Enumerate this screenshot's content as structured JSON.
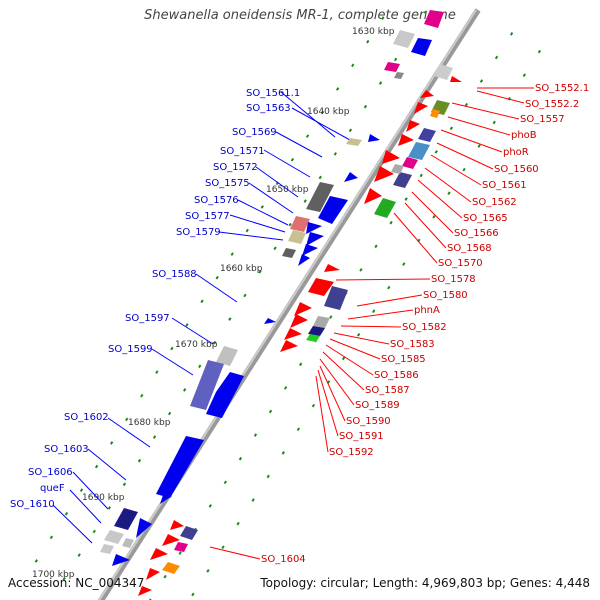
{
  "title": "Shewanella oneidensis MR-1, complete genome",
  "accession": "Accession: NC_004347",
  "summary": "Topology: circular; Length: 4,969,803 bp; Genes: 4,448",
  "scale_labels": [
    "1630 kbp",
    "1640 kbp",
    "1650 kbp",
    "1660 kbp",
    "1670 kbp",
    "1680 kbp",
    "1690 kbp",
    "1700 kbp"
  ],
  "left_labels": [
    "SO_1561.1",
    "SO_1563",
    "SO_1569",
    "SO_1571",
    "SO_1572",
    "SO_1575",
    "SO_1576",
    "SO_1577",
    "SO_1579",
    "SO_1588",
    "SO_1597",
    "SO_1599",
    "SO_1602",
    "SO_1603",
    "SO_1606",
    "queF",
    "SO_1610"
  ],
  "right_labels": [
    "SO_1552.1",
    "SO_1552.2",
    "SO_1557",
    "phoB",
    "phoR",
    "SO_1560",
    "SO_1561",
    "SO_1562",
    "SO_1565",
    "SO_1566",
    "SO_1568",
    "SO_1570",
    "SO_1578",
    "SO_1580",
    "phnA",
    "SO_1582",
    "SO_1583",
    "SO_1585",
    "SO_1586",
    "SO_1587",
    "SO_1589",
    "SO_1590",
    "SO_1591",
    "SO_1592",
    "SO_1604"
  ],
  "colors": {
    "left_label": "#0000cc",
    "right_label": "#cc0000",
    "backbone": "#888888",
    "tick": "#1a8a1a"
  }
}
